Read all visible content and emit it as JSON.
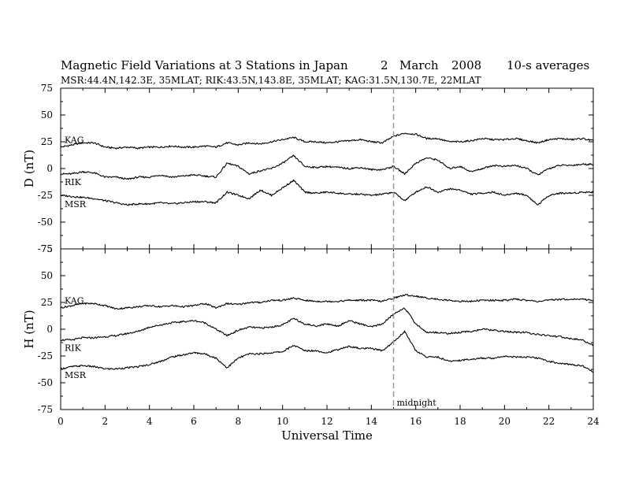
{
  "header": {
    "title": "Magnetic Field Variations at 3 Stations in Japan",
    "day": "2",
    "month": "March",
    "year": "2008",
    "averaging": "10-s averages",
    "stations_line": "MSR:44.4N,142.3E, 35MLAT;  RIK:43.5N,143.8E, 35MLAT;  KAG:31.5N,130.7E, 22MLAT"
  },
  "chart_data": [
    {
      "type": "line",
      "ylabel": "D (nT)",
      "xlabel": "",
      "xlim": [
        0,
        24
      ],
      "ylim": [
        -75,
        75
      ],
      "yticks": [
        -75,
        -50,
        -25,
        0,
        25,
        50,
        75
      ],
      "ytick_labels": [
        "-75",
        "-50",
        "-25",
        "0",
        "25",
        "50",
        "75"
      ],
      "series": [
        {
          "name": "KAG",
          "x": [
            0,
            0.5,
            1,
            1.5,
            2,
            2.5,
            3,
            3.5,
            4,
            4.5,
            5,
            5.5,
            6,
            6.5,
            7,
            7.5,
            8,
            8.5,
            9,
            9.5,
            10,
            10.5,
            11,
            11.5,
            12,
            12.5,
            13,
            13.5,
            14,
            14.5,
            15,
            15.5,
            16,
            16.5,
            17,
            17.5,
            18,
            18.5,
            19,
            19.5,
            20,
            20.5,
            21,
            21.5,
            22,
            22.5,
            23,
            23.5,
            24
          ],
          "y": [
            20,
            22,
            24,
            24,
            20,
            19,
            20,
            19,
            20,
            20,
            21,
            20,
            20,
            21,
            20,
            24,
            22,
            24,
            23,
            25,
            27,
            29,
            25,
            25,
            24,
            25,
            26,
            27,
            25,
            24,
            30,
            33,
            32,
            28,
            28,
            25,
            25,
            26,
            28,
            27,
            27,
            28,
            26,
            24,
            27,
            28,
            27,
            28,
            26
          ]
        },
        {
          "name": "RIK",
          "x": [
            0,
            0.5,
            1,
            1.5,
            2,
            2.5,
            3,
            3.5,
            4,
            4.5,
            5,
            5.5,
            6,
            6.5,
            7,
            7.5,
            8,
            8.5,
            9,
            9.5,
            10,
            10.5,
            11,
            11.5,
            12,
            12.5,
            13,
            13.5,
            14,
            14.5,
            15,
            15.5,
            16,
            16.5,
            17,
            17.5,
            18,
            18.5,
            19,
            19.5,
            20,
            20.5,
            21,
            21.5,
            22,
            22.5,
            23,
            23.5,
            24
          ],
          "y": [
            -5,
            -5,
            -3,
            -4,
            -8,
            -8,
            -10,
            -8,
            -8,
            -6,
            -8,
            -7,
            -6,
            -7,
            -8,
            5,
            2,
            -5,
            -2,
            0,
            5,
            12,
            2,
            1,
            2,
            1,
            0,
            1,
            -1,
            -1,
            2,
            -5,
            5,
            10,
            8,
            0,
            2,
            -3,
            0,
            3,
            2,
            3,
            0,
            -6,
            0,
            3,
            3,
            4,
            4
          ]
        },
        {
          "name": "MSR",
          "x": [
            0,
            0.5,
            1,
            1.5,
            2,
            2.5,
            3,
            3.5,
            4,
            4.5,
            5,
            5.5,
            6,
            6.5,
            7,
            7.5,
            8,
            8.5,
            9,
            9.5,
            10,
            10.5,
            11,
            11.5,
            12,
            12.5,
            13,
            13.5,
            14,
            14.5,
            15,
            15.5,
            16,
            16.5,
            17,
            17.5,
            18,
            18.5,
            19,
            19.5,
            20,
            20.5,
            21,
            21.5,
            22,
            22.5,
            23,
            23.5,
            24
          ],
          "y": [
            -25,
            -26,
            -27,
            -28,
            -30,
            -32,
            -34,
            -33,
            -33,
            -32,
            -33,
            -32,
            -31,
            -31,
            -32,
            -22,
            -25,
            -28,
            -20,
            -25,
            -18,
            -11,
            -22,
            -23,
            -22,
            -23,
            -24,
            -24,
            -25,
            -24,
            -22,
            -30,
            -22,
            -17,
            -22,
            -19,
            -20,
            -24,
            -23,
            -22,
            -25,
            -23,
            -25,
            -34,
            -25,
            -23,
            -23,
            -22,
            -22
          ]
        }
      ]
    },
    {
      "type": "line",
      "ylabel": "H (nT)",
      "xlabel": "Universal Time",
      "xlim": [
        0,
        24
      ],
      "ylim": [
        -75,
        75
      ],
      "xticks": [
        0,
        2,
        4,
        6,
        8,
        10,
        12,
        14,
        16,
        18,
        20,
        22,
        24
      ],
      "xtick_labels": [
        "0",
        "2",
        "4",
        "6",
        "8",
        "10",
        "12",
        "14",
        "16",
        "18",
        "20",
        "22",
        "24"
      ],
      "yticks": [
        -75,
        -50,
        -25,
        0,
        25,
        50,
        75
      ],
      "ytick_labels": [
        "-75",
        "-50",
        "-25",
        "0",
        "25",
        "50",
        "75"
      ],
      "series": [
        {
          "name": "KAG",
          "x": [
            0,
            0.5,
            1,
            1.5,
            2,
            2.5,
            3,
            3.5,
            4,
            4.5,
            5,
            5.5,
            6,
            6.5,
            7,
            7.5,
            8,
            8.5,
            9,
            9.5,
            10,
            10.5,
            11,
            11.5,
            12,
            12.5,
            13,
            13.5,
            14,
            14.5,
            15,
            15.5,
            16,
            16.5,
            17,
            17.5,
            18,
            18.5,
            19,
            19.5,
            20,
            20.5,
            21,
            21.5,
            22,
            22.5,
            23,
            23.5,
            24
          ],
          "y": [
            20,
            22,
            24,
            24,
            22,
            19,
            20,
            21,
            22,
            21,
            22,
            21,
            22,
            24,
            20,
            24,
            23,
            25,
            25,
            27,
            27,
            29,
            27,
            26,
            26,
            26,
            27,
            27,
            27,
            26,
            29,
            32,
            31,
            29,
            28,
            27,
            26,
            26,
            27,
            27,
            27,
            28,
            27,
            26,
            27,
            28,
            28,
            28,
            27
          ]
        },
        {
          "name": "RIK",
          "x": [
            0,
            0.5,
            1,
            1.5,
            2,
            2.5,
            3,
            3.5,
            4,
            4.5,
            5,
            5.5,
            6,
            6.5,
            7,
            7.5,
            8,
            8.5,
            9,
            9.5,
            10,
            10.5,
            11,
            11.5,
            12,
            12.5,
            13,
            13.5,
            14,
            14.5,
            15,
            15.5,
            16,
            16.5,
            17,
            17.5,
            18,
            18.5,
            19,
            19.5,
            20,
            20.5,
            21,
            21.5,
            22,
            22.5,
            23,
            23.5,
            24
          ],
          "y": [
            -10,
            -10,
            -8,
            -8,
            -7,
            -6,
            -4,
            -2,
            2,
            4,
            6,
            7,
            8,
            6,
            0,
            -6,
            -1,
            2,
            1,
            2,
            4,
            10,
            5,
            3,
            5,
            3,
            8,
            5,
            2,
            5,
            14,
            20,
            5,
            -3,
            -3,
            -4,
            -3,
            -2,
            0,
            -1,
            -2,
            -3,
            -3,
            -5,
            -6,
            -7,
            -9,
            -10,
            -15
          ]
        },
        {
          "name": "MSR",
          "x": [
            0,
            0.5,
            1,
            1.5,
            2,
            2.5,
            3,
            3.5,
            4,
            4.5,
            5,
            5.5,
            6,
            6.5,
            7,
            7.5,
            8,
            8.5,
            9,
            9.5,
            10,
            10.5,
            11,
            11.5,
            12,
            12.5,
            13,
            13.5,
            14,
            14.5,
            15,
            15.5,
            16,
            16.5,
            17,
            17.5,
            18,
            18.5,
            19,
            19.5,
            20,
            20.5,
            21,
            21.5,
            22,
            22.5,
            23,
            23.5,
            24
          ],
          "y": [
            -37,
            -35,
            -34,
            -35,
            -37,
            -37,
            -36,
            -35,
            -33,
            -30,
            -26,
            -24,
            -22,
            -23,
            -27,
            -36,
            -27,
            -23,
            -23,
            -22,
            -21,
            -15,
            -20,
            -20,
            -22,
            -19,
            -16,
            -18,
            -18,
            -20,
            -12,
            -2,
            -20,
            -26,
            -26,
            -30,
            -29,
            -28,
            -27,
            -27,
            -25,
            -26,
            -26,
            -27,
            -30,
            -32,
            -33,
            -34,
            -40
          ]
        }
      ]
    }
  ],
  "annotations": {
    "midnight_label": "midnight",
    "midnight_ut": 15
  }
}
